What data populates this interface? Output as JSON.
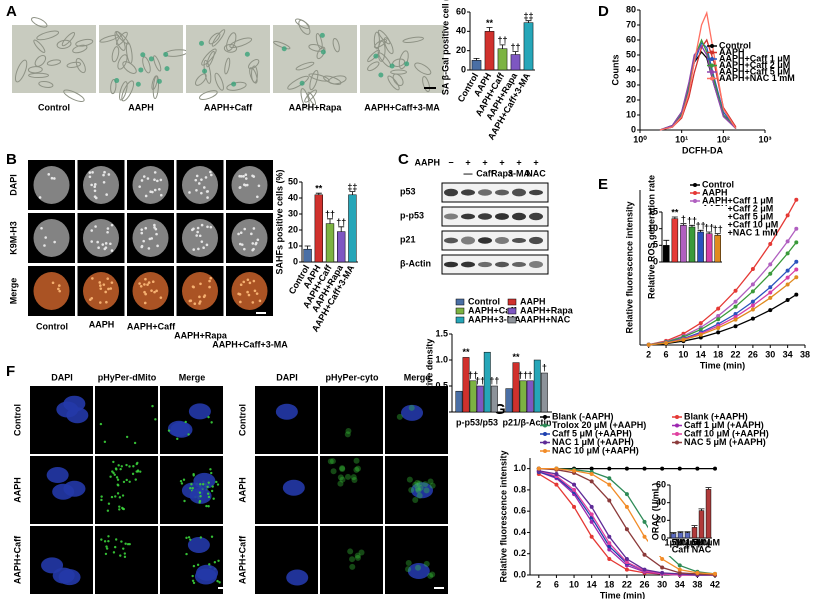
{
  "panel_labels": [
    "A",
    "B",
    "C",
    "D",
    "E",
    "F",
    "G"
  ],
  "panel_a": {
    "image_labels": [
      "Control",
      "AAPH",
      "AAPH+Caff",
      "AAPH+Rapa",
      "AAPH+Caff+3-MA"
    ]
  },
  "panel_b": {
    "row_labels": [
      "DAPI",
      "K9M-H3",
      "Merge"
    ],
    "column_labels": [
      "Control",
      "AAPH",
      "AAPH+Caff",
      "AAPH+Rapa",
      "AAPH+Caff+3-MA"
    ]
  },
  "blot": {
    "treatment_label": "AAPH",
    "signs": [
      "−",
      "+",
      "+",
      "+",
      "+",
      "+"
    ],
    "treatments": [
      null,
      "—",
      "Caff",
      "Rapa",
      "3-MA",
      "NAC"
    ],
    "bands": [
      "p53",
      "p-p53",
      "p21",
      "β-Actin"
    ]
  },
  "panel_f": {
    "left_columns": [
      "DAPI",
      "pHyPer-dMito",
      "Merge"
    ],
    "right_columns": [
      "DAPI",
      "pHyPer-cyto",
      "Merge"
    ],
    "left_rows": [
      "Control",
      "AAPH",
      "AAPH+Caff"
    ],
    "right_rows": [
      "Control",
      "AAPH",
      "AAPH+Caff"
    ]
  },
  "chart_data": [
    {
      "type": "bar",
      "y_label": "SA β-Gal positive cell (%)",
      "categories": [
        "Control",
        "AAPH",
        "AAPH+Caff",
        "AAPH+Rapa",
        "AAPH+Caff+3-MA"
      ],
      "values": [
        10,
        40,
        22,
        16,
        49
      ],
      "errors": [
        2,
        4,
        4,
        3,
        2
      ],
      "annotations": [
        null,
        "**",
        "††",
        "††",
        "‡‡"
      ],
      "colors": [
        "#4a6fa5",
        "#d0312d",
        "#7cb342",
        "#7e57c2",
        "#26a6b8"
      ],
      "ylim": [
        0,
        60
      ],
      "yticks": [
        0,
        20,
        40,
        60
      ]
    },
    {
      "type": "bar",
      "y_label": "SAHFs positive cells (%)",
      "categories": [
        "Control",
        "AAPH",
        "AAPH+Caff",
        "AAPH+Rapa",
        "AAPH+Caff+3-MA"
      ],
      "values": [
        8,
        42,
        24,
        19,
        42
      ],
      "errors": [
        2,
        1,
        3,
        3,
        2
      ],
      "annotations": [
        null,
        "**",
        "††",
        "††",
        "‡‡"
      ],
      "colors": [
        "#4a6fa5",
        "#d0312d",
        "#7cb342",
        "#7e57c2",
        "#26a6b8"
      ],
      "ylim": [
        0,
        50
      ],
      "yticks": [
        0,
        10,
        20,
        30,
        40,
        50
      ]
    },
    {
      "type": "grouped_bar",
      "y_label": "Relative density",
      "categories": [
        "p-p53/p53",
        "p21/β-Actin"
      ],
      "series": [
        {
          "name": "Control",
          "color": "#4a6fa5",
          "values": [
            0.4,
            0.45
          ],
          "annotations": [
            null,
            null
          ]
        },
        {
          "name": "AAPH",
          "color": "#d0312d",
          "values": [
            1.05,
            0.95
          ],
          "annotations": [
            "**",
            "**"
          ]
        },
        {
          "name": "AAPH+Caff",
          "color": "#7cb342",
          "values": [
            0.6,
            0.6
          ],
          "annotations": [
            "††",
            "††"
          ]
        },
        {
          "name": "AAPH+Rapa",
          "color": "#7e57c2",
          "values": [
            0.5,
            0.6
          ],
          "annotations": [
            "††",
            "†"
          ]
        },
        {
          "name": "AAPH+3-MA",
          "color": "#26a6b8",
          "values": [
            1.15,
            1.0
          ],
          "annotations": [
            null,
            null
          ]
        },
        {
          "name": "AAPH+NAC",
          "color": "#8d939a",
          "values": [
            0.5,
            0.75
          ],
          "annotations": [
            "††",
            "†"
          ]
        }
      ],
      "ylim": [
        0,
        1.5
      ],
      "yticks": [
        0,
        0.5,
        {
          "value": 1,
          "label": "1.0"
        },
        1.5
      ]
    },
    {
      "type": "line",
      "log_x": true,
      "x_label": "DCFH-DA",
      "y_label": "Counts",
      "x": [
        3,
        6,
        10,
        15,
        20,
        30,
        40,
        60,
        100,
        200
      ],
      "series": [
        {
          "name": "Control",
          "color": "#000000",
          "values": [
            0,
            3,
            12,
            30,
            45,
            52,
            48,
            30,
            10,
            1
          ]
        },
        {
          "name": "AAPH",
          "color": "#d0312d",
          "values": [
            0,
            2,
            8,
            22,
            38,
            55,
            60,
            45,
            15,
            2
          ]
        },
        {
          "name": "AAPH+Caff 1 μM",
          "color": "#2a52be",
          "values": [
            0,
            2,
            10,
            28,
            45,
            58,
            55,
            35,
            12,
            1
          ]
        },
        {
          "name": "AAPH+Caff 2 μM",
          "color": "#3a9a3a",
          "values": [
            0,
            3,
            11,
            30,
            48,
            60,
            52,
            33,
            10,
            1
          ]
        },
        {
          "name": "AAPH+Caff 5 μM",
          "color": "#8e44ad",
          "values": [
            0,
            3,
            12,
            32,
            50,
            56,
            50,
            30,
            9,
            1
          ]
        },
        {
          "name": "AAPH+NAC 1 mM",
          "color": "#ff6f61",
          "values": [
            0,
            2,
            9,
            25,
            45,
            70,
            78,
            50,
            14,
            1
          ]
        }
      ],
      "xlim": [
        1,
        1000
      ],
      "xticks": [
        {
          "value": 1,
          "label": "10⁰"
        },
        {
          "value": 10,
          "label": "10¹"
        },
        {
          "value": 100,
          "label": "10²"
        },
        {
          "value": 1000,
          "label": "10³"
        }
      ],
      "ylim": [
        0,
        80
      ],
      "yticks": [
        0,
        10,
        20,
        30,
        40,
        50,
        60,
        70,
        80
      ]
    },
    {
      "type": "line",
      "x_label": "Time (min)",
      "y_label": "Relative fluorescence intensity",
      "x": [
        2,
        6,
        10,
        14,
        18,
        22,
        26,
        30,
        34,
        36
      ],
      "series": [
        {
          "name": "Control",
          "color": "#000000",
          "values": [
            0.01,
            0.07,
            0.2,
            0.39,
            0.65,
            0.97,
            1.36,
            1.8,
            2.32,
            2.6
          ]
        },
        {
          "name": "AAPH",
          "color": "#e53935",
          "values": [
            0.02,
            0.21,
            0.58,
            1.13,
            1.88,
            2.8,
            3.92,
            5.21,
            6.69,
            7.5
          ]
        },
        {
          "name": "AAPH+Caff 1 μM",
          "color": "#b05fc0",
          "values": [
            0.02,
            0.17,
            0.46,
            0.91,
            1.5,
            2.24,
            3.13,
            4.16,
            5.35,
            6
          ]
        },
        {
          "name": "AAPH+Caff 2 μM",
          "color": "#3a9a3a",
          "values": [
            0.02,
            0.15,
            0.41,
            0.8,
            1.33,
            1.98,
            2.77,
            3.68,
            4.73,
            5.3
          ]
        },
        {
          "name": "AAPH+Caff 5 μM",
          "color": "#2a52be",
          "values": [
            0.01,
            0.12,
            0.33,
            0.65,
            1.08,
            1.6,
            2.24,
            2.98,
            3.84,
            4.3
          ]
        },
        {
          "name": "AAPH+Caff 10 μM",
          "color": "#d63fa6",
          "values": [
            0.01,
            0.11,
            0.3,
            0.59,
            0.98,
            1.45,
            2.04,
            2.71,
            3.48,
            3.9
          ]
        },
        {
          "name": "AAPH+NAC 1 mM",
          "color": "#e08a1e",
          "values": [
            0.01,
            0.1,
            0.27,
            0.53,
            0.88,
            1.31,
            1.83,
            2.43,
            3.12,
            3.5
          ]
        }
      ],
      "xlim": [
        0,
        38
      ],
      "xticks": [
        2,
        6,
        10,
        14,
        18,
        22,
        26,
        30,
        34,
        38
      ],
      "ylim": [
        0,
        8
      ]
    },
    {
      "type": "bar",
      "y_label": "Relative ROS generation rate",
      "categories": [
        null,
        null,
        null,
        null,
        null,
        null,
        null
      ],
      "values": [
        5,
        13,
        11,
        10.5,
        9,
        8.5,
        8
      ],
      "errors": [
        1.5,
        0.5,
        0.5,
        0.5,
        0.5,
        0.5,
        0.5
      ],
      "annotations": [
        null,
        "**",
        "†",
        "††",
        "††",
        "††",
        "††"
      ],
      "colors": [
        "#000000",
        "#e53935",
        "#b05fc0",
        "#3a9a3a",
        "#2a52be",
        "#d63fa6",
        "#e08a1e"
      ],
      "ylim": [
        0,
        15
      ],
      "yticks": [
        0,
        5,
        10,
        15
      ]
    },
    {
      "type": "line",
      "x_label": "Time (min)",
      "y_label": "Relative fluorescence intensity",
      "x": [
        2,
        6,
        10,
        14,
        18,
        22,
        26,
        30,
        34,
        38,
        42
      ],
      "series": [
        {
          "name": "Blank (-AAPH)",
          "color": "#000000",
          "values": [
            1,
            1,
            1,
            1,
            1,
            1,
            1,
            1,
            1,
            1,
            1
          ]
        },
        {
          "name": "Blank (+AAPH)",
          "color": "#e53935",
          "values": [
            0.95,
            0.85,
            0.64,
            0.36,
            0.15,
            0.05,
            0.02,
            0.01,
            0,
            0,
            0
          ]
        },
        {
          "name": "Trolox 20 μM (+AAPH)",
          "color": "#2e8b57",
          "values": [
            1,
            1,
            0.99,
            0.97,
            0.91,
            0.76,
            0.5,
            0.24,
            0.09,
            0.03,
            0.01
          ]
        },
        {
          "name": "Caff 1 μM (+AAPH)",
          "color": "#9c27b0",
          "values": [
            0.97,
            0.91,
            0.76,
            0.5,
            0.24,
            0.09,
            0.03,
            0.01,
            0,
            0,
            0
          ]
        },
        {
          "name": "Caff 5 μM (+AAPH)",
          "color": "#1e40af",
          "values": [
            0.97,
            0.92,
            0.78,
            0.54,
            0.27,
            0.11,
            0.04,
            0.01,
            0,
            0,
            0
          ]
        },
        {
          "name": "Caff 10 μM (+AAPH)",
          "color": "#e040a0",
          "values": [
            0.98,
            0.93,
            0.8,
            0.57,
            0.3,
            0.12,
            0.04,
            0.01,
            0,
            0,
            0
          ]
        },
        {
          "name": "NAC 1 μM (+AAPH)",
          "color": "#5e2b97",
          "values": [
            0.98,
            0.95,
            0.85,
            0.64,
            0.36,
            0.15,
            0.05,
            0.02,
            0.01,
            0,
            0
          ]
        },
        {
          "name": "NAC 5 μM (+AAPH)",
          "color": "#8b3a3a",
          "values": [
            1,
            0.99,
            0.96,
            0.88,
            0.7,
            0.43,
            0.19,
            0.07,
            0.02,
            0.01,
            0
          ]
        },
        {
          "name": "NAC 10 μM (+AAPH)",
          "color": "#f28c28",
          "values": [
            1,
            1,
            0.98,
            0.95,
            0.85,
            0.64,
            0.36,
            0.15,
            0.05,
            0.02,
            0.01
          ]
        }
      ],
      "xlim": [
        0,
        42
      ],
      "xticks": [
        2,
        6,
        10,
        14,
        18,
        22,
        26,
        30,
        34,
        38,
        42
      ],
      "ylim": [
        0,
        1.1
      ],
      "yticks": [
        {
          "value": 0,
          "label": "0.0"
        },
        0.2,
        0.4,
        0.6,
        0.8,
        {
          "value": 1,
          "label": "1.0"
        }
      ]
    },
    {
      "type": "bar",
      "y_label": "ORAC (U/mL)",
      "categories": [
        "1μM",
        "5μM",
        "10μM",
        "1μM",
        "5μM",
        "10μM"
      ],
      "group_labels": [
        "Caff",
        "NAC"
      ],
      "values": [
        5,
        6,
        6,
        12,
        31,
        55
      ],
      "errors": [
        1,
        1,
        1,
        2,
        2,
        2
      ],
      "colors": [
        "#5c6bc0",
        "#5c6bc0",
        "#5c6bc0",
        "#b03a3a",
        "#b03a3a",
        "#b03a3a"
      ],
      "ylim": [
        0,
        60
      ],
      "yticks": [
        0,
        20,
        40,
        60
      ]
    }
  ]
}
